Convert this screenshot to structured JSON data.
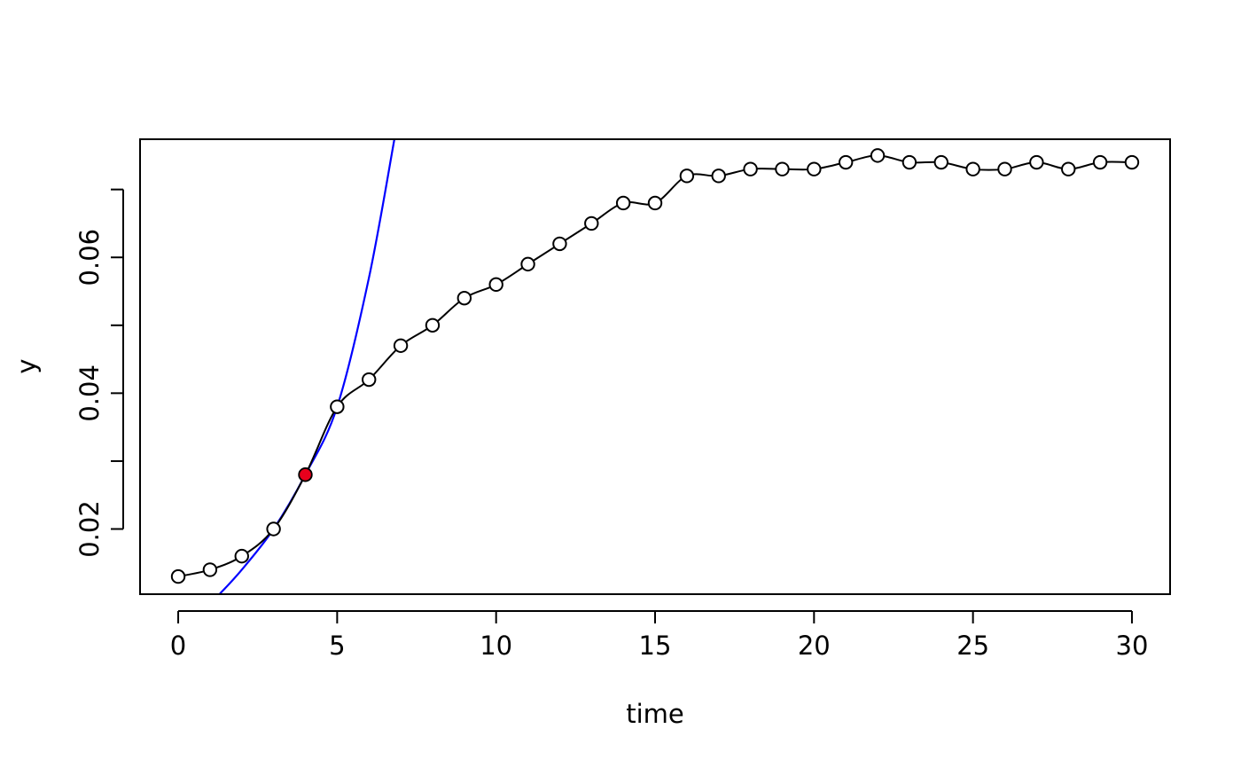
{
  "chart_data": {
    "type": "line",
    "title": "",
    "xlabel": "time",
    "ylabel": "y",
    "xlim": [
      -1.2,
      31.2
    ],
    "ylim": [
      0.0104,
      0.0774
    ],
    "x_ticks": [
      0,
      5,
      10,
      15,
      20,
      25,
      30
    ],
    "x_tick_labels": [
      "0",
      "5",
      "10",
      "15",
      "20",
      "25",
      "30"
    ],
    "y_ticks": [
      0.02,
      0.03,
      0.04,
      0.05,
      0.06,
      0.07
    ],
    "y_tick_labels": [
      "0.02",
      "",
      "0.04",
      "",
      "0.06",
      ""
    ],
    "grid": false,
    "series": [
      {
        "marker": "open-circle",
        "line": "smooth",
        "color": "#000000",
        "x": [
          0,
          1,
          2,
          3,
          4,
          5,
          6,
          7,
          8,
          9,
          10,
          11,
          12,
          13,
          14,
          15,
          16,
          17,
          18,
          19,
          20,
          21,
          22,
          23,
          24,
          25,
          26,
          27,
          28,
          29,
          30
        ],
        "y": [
          0.013,
          0.014,
          0.016,
          0.02,
          0.028,
          0.038,
          0.042,
          0.047,
          0.05,
          0.054,
          0.056,
          0.059,
          0.062,
          0.065,
          0.068,
          0.068,
          0.072,
          0.072,
          0.073,
          0.073,
          0.073,
          0.074,
          0.075,
          0.074,
          0.074,
          0.073,
          0.073,
          0.074,
          0.073,
          0.074,
          0.074
        ]
      },
      {
        "line": "exponential-fit",
        "color": "#0000ff",
        "x": [
          1.3,
          2,
          3,
          4,
          5,
          6,
          6.8
        ],
        "y": [
          0.0104,
          0.014,
          0.02,
          0.028,
          0.038,
          0.057,
          0.0774
        ]
      }
    ],
    "highlight_point": {
      "x": 4,
      "y": 0.028,
      "color": "#e8001c"
    }
  }
}
